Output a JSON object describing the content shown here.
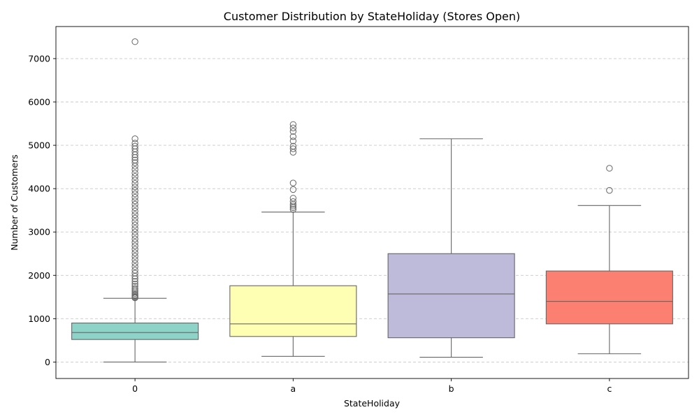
{
  "chart_data": {
    "type": "box",
    "title": "Customer Distribution by StateHoliday (Stores Open)",
    "xlabel": "StateHoliday",
    "ylabel": "Number of Customers",
    "ylim": [
      -380,
      7740
    ],
    "yticks": [
      0,
      1000,
      2000,
      3000,
      4000,
      5000,
      6000,
      7000
    ],
    "grid": "y-dashed",
    "categories": [
      "0",
      "a",
      "b",
      "c"
    ],
    "boxes": [
      {
        "category": "0",
        "color": "#8dd3c7",
        "whisker_low": 0,
        "q1": 520,
        "median": 680,
        "q3": 900,
        "whisker_high": 1470,
        "outliers": [
          1480,
          1500,
          1520,
          1550,
          1580,
          1620,
          1660,
          1700,
          1750,
          1800,
          1860,
          1920,
          1980,
          2050,
          2120,
          2200,
          2280,
          2360,
          2440,
          2520,
          2600,
          2680,
          2760,
          2840,
          2920,
          3000,
          3080,
          3160,
          3240,
          3320,
          3400,
          3480,
          3560,
          3640,
          3720,
          3800,
          3880,
          3960,
          4040,
          4120,
          4200,
          4280,
          4360,
          4440,
          4520,
          4600,
          4660,
          4720,
          4780,
          4850,
          4920,
          4980,
          5050,
          5150,
          7390
        ]
      },
      {
        "category": "a",
        "color": "#ffffb3",
        "whisker_low": 130,
        "q1": 590,
        "median": 880,
        "q3": 1760,
        "whisker_high": 3460,
        "outliers": [
          3520,
          3560,
          3600,
          3640,
          3700,
          3780,
          3980,
          4130,
          4840,
          4920,
          4980,
          5100,
          5200,
          5320,
          5400,
          5480
        ]
      },
      {
        "category": "b",
        "color": "#bebada",
        "whisker_low": 110,
        "q1": 560,
        "median": 1570,
        "q3": 2500,
        "whisker_high": 5150,
        "outliers": []
      },
      {
        "category": "c",
        "color": "#fb8072",
        "whisker_low": 190,
        "q1": 880,
        "median": 1400,
        "q3": 2100,
        "whisker_high": 3610,
        "outliers": [
          3960,
          4470
        ]
      }
    ]
  }
}
